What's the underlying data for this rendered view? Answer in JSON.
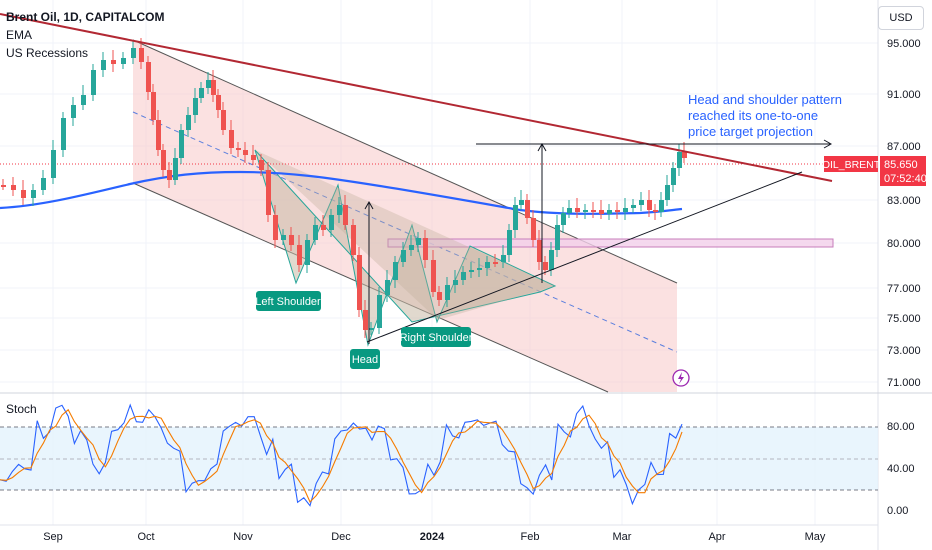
{
  "legend": {
    "title": "Brent Oil, 1D, CAPITALCOM",
    "ema": "EMA",
    "recessions": "US Recessions"
  },
  "currency": "USD",
  "stoch_label": "Stoch",
  "price_axis": {
    "ticks": [
      "95.000",
      "91.000",
      "87.000",
      "83.000",
      "80.000",
      "77.000",
      "75.000",
      "73.000",
      "71.000"
    ],
    "current_symbol": "OIL_BRENT",
    "current_price": "85.650",
    "countdown": "07:52:40"
  },
  "stoch_axis": {
    "ticks": [
      "80.00",
      "40.00",
      "0.00"
    ]
  },
  "time_axis": {
    "ticks": [
      "Sep",
      "Oct",
      "Nov",
      "Dec",
      "2024",
      "Feb",
      "Mar",
      "Apr",
      "May"
    ]
  },
  "annotations": {
    "note_line1": "Head and shoulder pattern",
    "note_line2": "reached its one-to-one",
    "note_line3": "price target projection",
    "left_shoulder": "Left Shoulder",
    "head": "Head",
    "right_shoulder": "Right Shoulder"
  },
  "colors": {
    "up": "#26a69a",
    "down": "#ef5350",
    "ema": "#2962ff",
    "trendline": "#b22833",
    "label_bg": "#089981",
    "channel_fill": "#f8c9c9",
    "stoch_k": "#2962ff",
    "stoch_d": "#f57c00",
    "stoch_band": "#e3f2fd",
    "note_text": "#2962ff",
    "price_badge": "#f23645"
  },
  "icons": {
    "alert": "lightning-icon"
  }
}
